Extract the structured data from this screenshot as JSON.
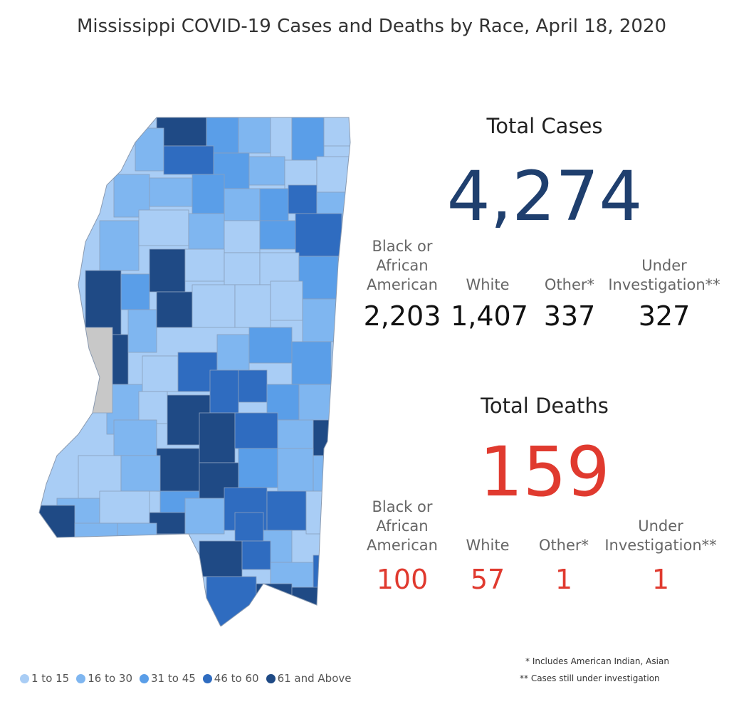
{
  "title": "Mississippi COVID-19 Cases and Deaths by Race, April 18, 2020",
  "cases": {
    "heading": "Total Cases",
    "total": "4,274",
    "breakdown": [
      {
        "label": "Black or\nAfrican\nAmerican",
        "value": "2,203"
      },
      {
        "label": "White",
        "value": "1,407"
      },
      {
        "label": "Other*",
        "value": "337"
      },
      {
        "label": "Under\nInvestigation**",
        "value": "327"
      }
    ]
  },
  "deaths": {
    "heading": "Total Deaths",
    "total": "159",
    "breakdown": [
      {
        "label": "Black or\nAfrican\nAmerican",
        "value": "100"
      },
      {
        "label": "White",
        "value": "57"
      },
      {
        "label": "Other*",
        "value": "1"
      },
      {
        "label": "Under\nInvestigation**",
        "value": "1"
      }
    ]
  },
  "footnotes": [
    "* Includes American Indian, Asian",
    "** Cases still under investigation"
  ],
  "legend": [
    {
      "label": "1 to 15",
      "color": "#a9cdf5"
    },
    {
      "label": "16 to 30",
      "color": "#7fb6f0"
    },
    {
      "label": "31 to 45",
      "color": "#5a9ee8"
    },
    {
      "label": "46 to 60",
      "color": "#2f6cc0"
    },
    {
      "label": "61 and Above",
      "color": "#1f4a85"
    }
  ],
  "no_data_color": "#c8c8c8"
}
